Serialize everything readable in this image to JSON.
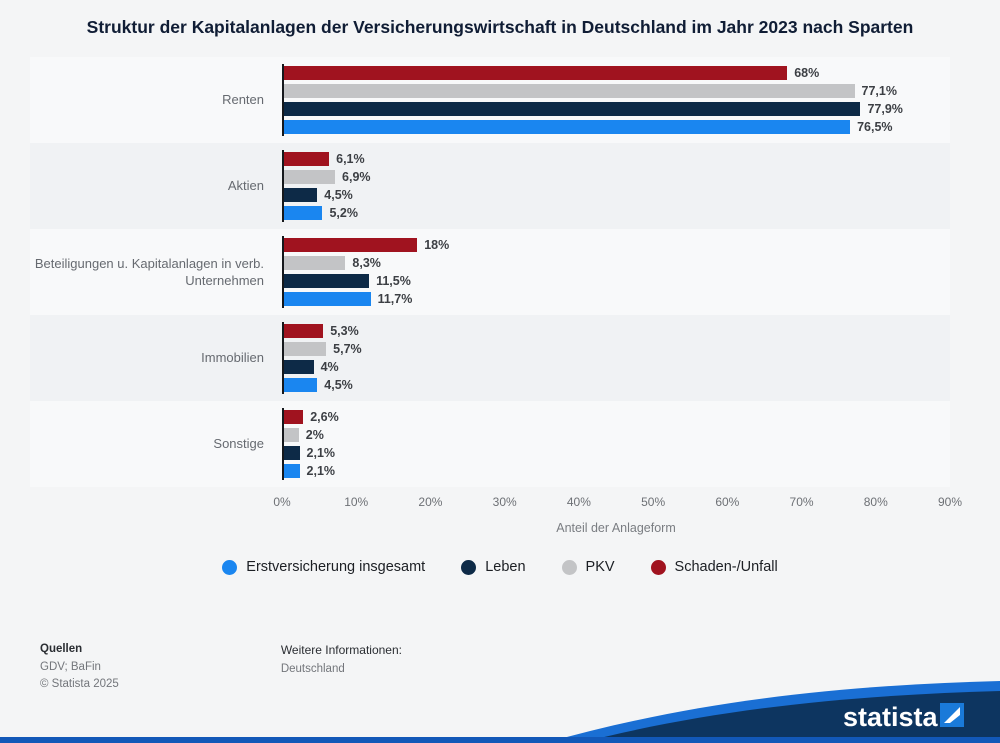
{
  "title": "Struktur der Kapitalanlagen der Versicherungswirtschaft in Deutschland im Jahr 2023 nach Sparten",
  "chart_data": {
    "type": "bar",
    "orientation": "horizontal",
    "title": "Struktur der Kapitalanlagen der Versicherungswirtschaft in Deutschland im Jahr 2023 nach Sparten",
    "categories": [
      "Renten",
      "Aktien",
      "Beteiligungen u. Kapitalanlagen in verb. Unternehmen",
      "Immobilien",
      "Sonstige"
    ],
    "series": [
      {
        "name": "Schaden-/Unfall",
        "color": "#a0131f",
        "values": [
          68,
          6.1,
          18,
          5.3,
          2.6
        ],
        "labels": [
          "68%",
          "6,1%",
          "18%",
          "5,3%",
          "2,6%"
        ]
      },
      {
        "name": "PKV",
        "color": "#c3c4c6",
        "values": [
          77.1,
          6.9,
          8.3,
          5.7,
          2
        ],
        "labels": [
          "77,1%",
          "6,9%",
          "8,3%",
          "5,7%",
          "2%"
        ]
      },
      {
        "name": "Leben",
        "color": "#0d2a47",
        "values": [
          77.9,
          4.5,
          11.5,
          4,
          2.1
        ],
        "labels": [
          "77,9%",
          "4,5%",
          "11,5%",
          "4%",
          "2,1%"
        ]
      },
      {
        "name": "Erstversicherung insgesamt",
        "color": "#1a86f0",
        "values": [
          76.5,
          5.2,
          11.7,
          4.5,
          2.1
        ],
        "labels": [
          "76,5%",
          "5,2%",
          "11,7%",
          "4,5%",
          "2,1%"
        ]
      }
    ],
    "xlabel": "Anteil der Anlageform",
    "xlim": [
      0,
      90
    ],
    "xticks": [
      "0%",
      "10%",
      "20%",
      "30%",
      "40%",
      "50%",
      "60%",
      "70%",
      "80%",
      "90%"
    ],
    "grid": false,
    "legend_position": "bottom",
    "legend": [
      {
        "label": "Erstversicherung insgesamt",
        "color": "#1a86f0"
      },
      {
        "label": "Leben",
        "color": "#0d2a47"
      },
      {
        "label": "PKV",
        "color": "#c3c4c6"
      },
      {
        "label": "Schaden-/Unfall",
        "color": "#a0131f"
      }
    ]
  },
  "footer": {
    "sources_heading": "Quellen",
    "sources": "GDV; BaFin",
    "copyright": "© Statista 2025",
    "info_heading": "Weitere Informationen:",
    "info": "Deutschland"
  },
  "branding": {
    "logo_text": "statista"
  }
}
